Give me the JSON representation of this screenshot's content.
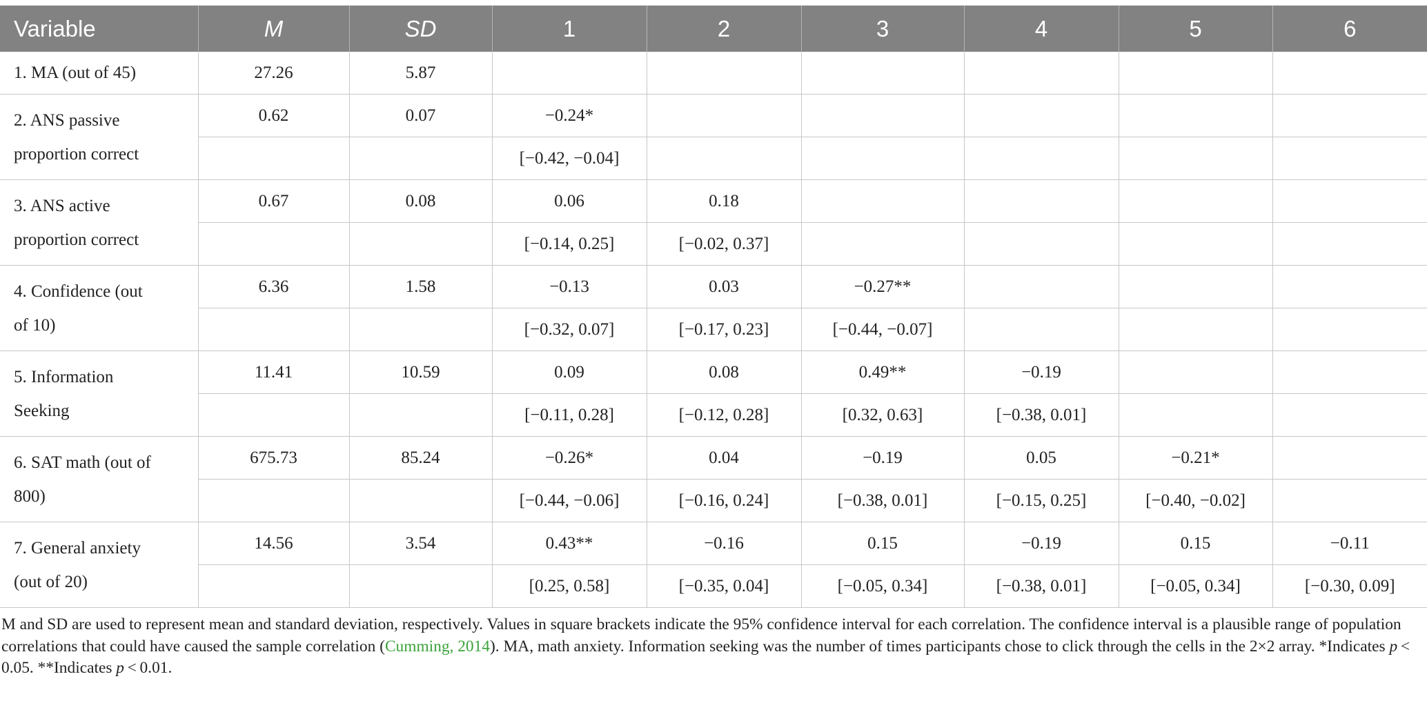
{
  "headers": [
    "Variable",
    "M",
    "SD",
    "1",
    "2",
    "3",
    "4",
    "5",
    "6"
  ],
  "rows": [
    {
      "label": [
        "1. MA (out of 45)"
      ],
      "m": "27.26",
      "sd": "5.87",
      "r": [],
      "ci": null
    },
    {
      "label": [
        "2. ANS passive",
        "proportion correct"
      ],
      "m": "0.62",
      "sd": "0.07",
      "r": [
        "−0.24*"
      ],
      "ci": [
        "[−0.42, −0.04]"
      ]
    },
    {
      "label": [
        "3. ANS active",
        "proportion correct"
      ],
      "m": "0.67",
      "sd": "0.08",
      "r": [
        "0.06",
        "0.18"
      ],
      "ci": [
        "[−0.14, 0.25]",
        "[−0.02, 0.37]"
      ]
    },
    {
      "label": [
        "4. Confidence (out",
        "of 10)"
      ],
      "m": "6.36",
      "sd": "1.58",
      "r": [
        "−0.13",
        "0.03",
        "−0.27**"
      ],
      "ci": [
        "[−0.32, 0.07]",
        "[−0.17, 0.23]",
        "[−0.44, −0.07]"
      ]
    },
    {
      "label": [
        "5. Information",
        "Seeking"
      ],
      "m": "11.41",
      "sd": "10.59",
      "r": [
        "0.09",
        "0.08",
        "0.49**",
        "−0.19"
      ],
      "ci": [
        "[−0.11, 0.28]",
        "[−0.12, 0.28]",
        "[0.32, 0.63]",
        "[−0.38, 0.01]"
      ]
    },
    {
      "label": [
        "6. SAT math (out of",
        "800)"
      ],
      "m": "675.73",
      "sd": "85.24",
      "r": [
        "−0.26*",
        "0.04",
        "−0.19",
        "0.05",
        "−0.21*"
      ],
      "ci": [
        "[−0.44, −0.06]",
        "[−0.16, 0.24]",
        "[−0.38, 0.01]",
        "[−0.15, 0.25]",
        "[−0.40, −0.02]"
      ]
    },
    {
      "label": [
        "7. General anxiety",
        "(out of 20)"
      ],
      "m": "14.56",
      "sd": "3.54",
      "r": [
        "0.43**",
        "−0.16",
        "0.15",
        "−0.19",
        "0.15",
        "−0.11"
      ],
      "ci": [
        "[0.25, 0.58]",
        "[−0.35, 0.04]",
        "[−0.05, 0.34]",
        "[−0.38, 0.01]",
        "[−0.05, 0.34]",
        "[−0.30, 0.09]"
      ]
    }
  ],
  "note": {
    "part1": "M and SD are used to represent mean and standard deviation, respectively. Values in square brackets indicate the 95% confidence interval for each correlation. The confidence interval is a plausible range of population correlations that could have caused the sample correlation (",
    "citation": "Cumming, 2014",
    "part2": "). MA, math anxiety. Information seeking was the number of times participants chose to click through the cells in the 2×2 array. *Indicates ",
    "p1": "p",
    "part3": " < 0.05. **Indicates ",
    "p2": "p",
    "part4": " < 0.01."
  }
}
